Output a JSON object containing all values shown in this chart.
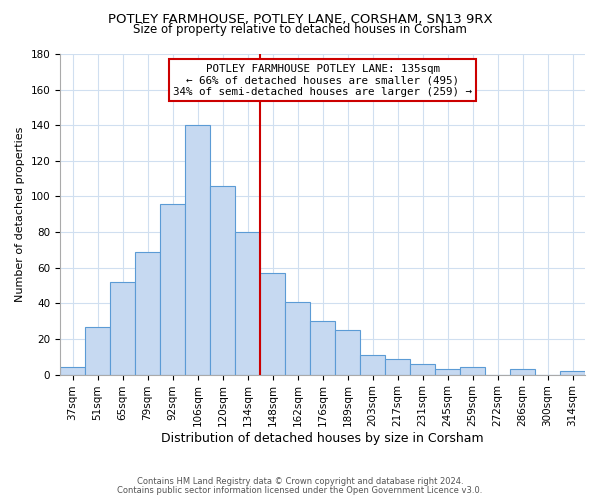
{
  "title": "POTLEY FARMHOUSE, POTLEY LANE, CORSHAM, SN13 9RX",
  "subtitle": "Size of property relative to detached houses in Corsham",
  "xlabel": "Distribution of detached houses by size in Corsham",
  "ylabel": "Number of detached properties",
  "bar_labels": [
    "37sqm",
    "51sqm",
    "65sqm",
    "79sqm",
    "92sqm",
    "106sqm",
    "120sqm",
    "134sqm",
    "148sqm",
    "162sqm",
    "176sqm",
    "189sqm",
    "203sqm",
    "217sqm",
    "231sqm",
    "245sqm",
    "259sqm",
    "272sqm",
    "286sqm",
    "300sqm",
    "314sqm"
  ],
  "bar_values": [
    4,
    27,
    52,
    69,
    96,
    140,
    106,
    80,
    57,
    41,
    30,
    25,
    11,
    9,
    6,
    3,
    4,
    0,
    3,
    0,
    2
  ],
  "bar_color": "#c6d9f1",
  "bar_edge_color": "#5b9bd5",
  "vline_x": 7.5,
  "vline_color": "#cc0000",
  "annotation_text": "POTLEY FARMHOUSE POTLEY LANE: 135sqm\n← 66% of detached houses are smaller (495)\n34% of semi-detached houses are larger (259) →",
  "annotation_box_color": "#ffffff",
  "annotation_box_edge": "#cc0000",
  "ylim": [
    0,
    180
  ],
  "yticks": [
    0,
    20,
    40,
    60,
    80,
    100,
    120,
    140,
    160,
    180
  ],
  "footer_line1": "Contains HM Land Registry data © Crown copyright and database right 2024.",
  "footer_line2": "Contains public sector information licensed under the Open Government Licence v3.0.",
  "background_color": "#ffffff",
  "grid_color": "#d0dff0",
  "title_fontsize": 9.5,
  "subtitle_fontsize": 8.5,
  "ylabel_fontsize": 8.0,
  "xlabel_fontsize": 9.0,
  "tick_fontsize": 7.5,
  "annotation_fontsize": 7.8,
  "footer_fontsize": 6.0
}
